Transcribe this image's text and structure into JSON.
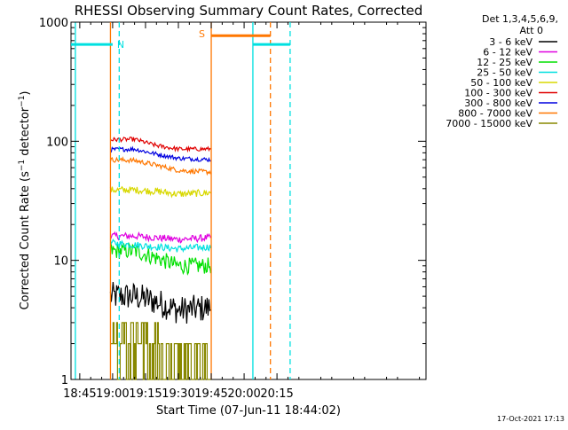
{
  "chart_data": {
    "type": "line",
    "title": "RHESSI Observing Summary Count Rates, Corrected",
    "xlabel": "Start Time (07-Jun-11 18:44:02)",
    "ylabel": "Corrected Count Rate (s⁻¹ detector⁻¹)",
    "y_scale": "log",
    "ylim": [
      1,
      1000
    ],
    "xlim": [
      "18:41",
      "21:23"
    ],
    "x_ticks": [
      "18:45",
      "19:00",
      "19:15",
      "19:30",
      "19:45",
      "20:00",
      "20:15"
    ],
    "y_ticks": [
      "1",
      "10",
      "100",
      "1000"
    ],
    "legend_header": [
      "Det 1,3,4,5,6,9,",
      "Att 0"
    ],
    "legend_position": "top-right",
    "footer_date": "17-Oct-2021 17:13",
    "series": [
      {
        "name": "3 - 6 keV",
        "color": "#000000",
        "x": [
          "18:59",
          "19:10",
          "19:20",
          "19:30",
          "19:45"
        ],
        "values": [
          5,
          5,
          4.5,
          3.8,
          4
        ],
        "noise": 0.12
      },
      {
        "name": "6 - 12 keV",
        "color": "#e000e0",
        "x": [
          "18:59",
          "19:10",
          "19:20",
          "19:30",
          "19:45"
        ],
        "values": [
          16,
          16,
          15.5,
          15,
          15.5
        ],
        "noise": 0.03
      },
      {
        "name": "12 - 25 keV",
        "color": "#00e000",
        "x": [
          "18:59",
          "19:10",
          "19:20",
          "19:30",
          "19:45"
        ],
        "values": [
          12,
          12,
          10.5,
          9,
          9
        ],
        "noise": 0.07
      },
      {
        "name": "25 - 50 keV",
        "color": "#00e0e0",
        "x": [
          "18:59",
          "19:10",
          "19:20",
          "19:30",
          "19:45"
        ],
        "values": [
          14,
          13.5,
          13,
          12.5,
          13
        ],
        "noise": 0.03
      },
      {
        "name": "50 - 100 keV",
        "color": "#d8d800",
        "x": [
          "18:59",
          "19:10",
          "19:20",
          "19:30",
          "19:45"
        ],
        "values": [
          39,
          39,
          38,
          36,
          37
        ],
        "noise": 0.03
      },
      {
        "name": "100 - 300 keV",
        "color": "#e00000",
        "x": [
          "18:59",
          "19:10",
          "19:20",
          "19:30",
          "19:45"
        ],
        "values": [
          103,
          104,
          92,
          86,
          86
        ],
        "noise": 0.018
      },
      {
        "name": "300 - 800 keV",
        "color": "#0000e0",
        "x": [
          "18:59",
          "19:10",
          "19:20",
          "19:30",
          "19:45"
        ],
        "values": [
          85,
          86,
          78,
          72,
          70
        ],
        "noise": 0.018
      },
      {
        "name": "800 - 7000 keV",
        "color": "#ff7700",
        "x": [
          "18:59",
          "19:10",
          "19:20",
          "19:30",
          "19:45"
        ],
        "values": [
          70,
          69,
          63,
          57,
          55
        ],
        "noise": 0.02
      },
      {
        "name": "7000 - 15000 keV",
        "color": "#888800",
        "x": [
          "18:59",
          "19:10",
          "19:20",
          "19:30",
          "19:45"
        ],
        "values": [
          2,
          2.5,
          2,
          1.7,
          1.7
        ],
        "noise": 0
      }
    ],
    "intervals": [
      {
        "label": "",
        "color": "#00e0e0",
        "start": "18:41",
        "end": "18:58",
        "level": 650
      },
      {
        "label": "N",
        "color": "#00e0e0",
        "start": "18:58",
        "end": "19:00",
        "level": 650
      },
      {
        "label": "S",
        "color": "#ff7700",
        "start": "19:45",
        "end": "20:12",
        "level": 770
      },
      {
        "label": "",
        "color": "#00e0e0",
        "start": "20:04",
        "end": "20:21",
        "level": 650
      }
    ],
    "verticals": [
      {
        "x": "18:43",
        "color": "#00e0e0",
        "style": "solid"
      },
      {
        "x": "18:59",
        "color": "#ff7700",
        "style": "solid"
      },
      {
        "x": "19:03",
        "color": "#00e0e0",
        "style": "dashed"
      },
      {
        "x": "19:45",
        "color": "#ff7700",
        "style": "solid"
      },
      {
        "x": "20:04",
        "color": "#00e0e0",
        "style": "solid"
      },
      {
        "x": "20:12",
        "color": "#ff7700",
        "style": "dashed"
      },
      {
        "x": "20:21",
        "color": "#00e0e0",
        "style": "dashed"
      }
    ]
  }
}
